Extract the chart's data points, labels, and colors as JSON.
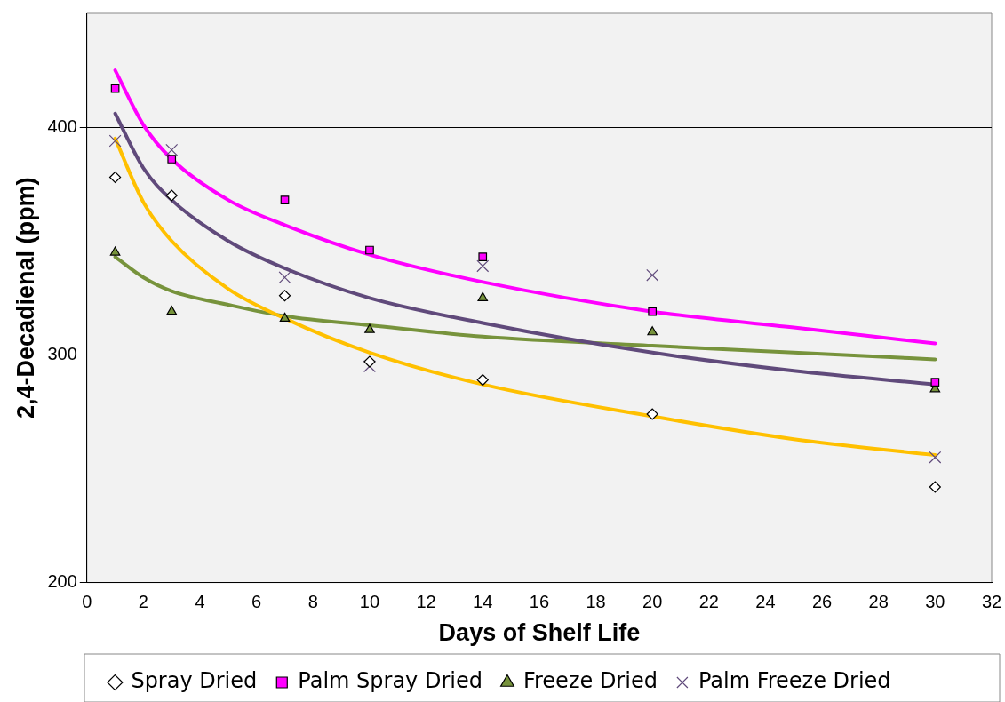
{
  "chart_data": {
    "type": "scatter",
    "xlabel": "Days of Shelf Life",
    "ylabel": "2,4-Decadienal (ppm)",
    "xlim": [
      0,
      32
    ],
    "xticks": [
      0,
      2,
      4,
      6,
      8,
      10,
      12,
      14,
      16,
      18,
      20,
      22,
      24,
      26,
      28,
      30,
      32
    ],
    "ylim": [
      200,
      450
    ],
    "yticks": [
      200,
      300,
      400
    ],
    "grid": "y",
    "legend": "bottom",
    "x": [
      1,
      3,
      7,
      10,
      14,
      20,
      30
    ],
    "series": [
      {
        "name": "Spray Dried",
        "type": "scatter",
        "marker": "diamond",
        "color": "#ffffff",
        "values": [
          378,
          370,
          326,
          297,
          289,
          274,
          242
        ]
      },
      {
        "name": "Palm Spray Dried",
        "type": "scatter",
        "marker": "square",
        "color": "#ff00ff",
        "values": [
          417,
          386,
          368,
          346,
          343,
          319,
          288
        ]
      },
      {
        "name": "Freeze Dried",
        "marker": "triangle",
        "color": "#77933c",
        "values": [
          345,
          319,
          316,
          311,
          325,
          310,
          285
        ]
      },
      {
        "name": "Palm Freeze Dried",
        "marker": "cross",
        "color": "#604a7b",
        "values": [
          394,
          390,
          334,
          295,
          339,
          335,
          255
        ]
      },
      {
        "type": "line",
        "color": "#ffc000",
        "x": [
          1,
          2,
          3,
          5,
          7,
          10,
          14,
          20,
          25,
          30
        ],
        "values": [
          395,
          367,
          350,
          329,
          316,
          301,
          287,
          273,
          263,
          256
        ]
      },
      {
        "type": "line",
        "color": "#ff00ff",
        "x": [
          1,
          2,
          3,
          5,
          7,
          10,
          14,
          20,
          25,
          30
        ],
        "values": [
          425,
          401,
          386,
          368,
          357,
          344,
          332,
          319,
          312,
          305
        ]
      },
      {
        "type": "line",
        "color": "#604a7b",
        "x": [
          1,
          2,
          3,
          5,
          7,
          10,
          14,
          20,
          25,
          30
        ],
        "values": [
          406,
          382,
          368,
          350,
          338,
          325,
          314,
          301,
          293,
          287
        ]
      },
      {
        "type": "line",
        "color": "#77933c",
        "x": [
          1,
          2,
          3,
          5,
          7,
          10,
          14,
          20,
          25,
          30
        ],
        "values": [
          343,
          334,
          328,
          322,
          317,
          313,
          308,
          304,
          301,
          298
        ]
      }
    ]
  }
}
